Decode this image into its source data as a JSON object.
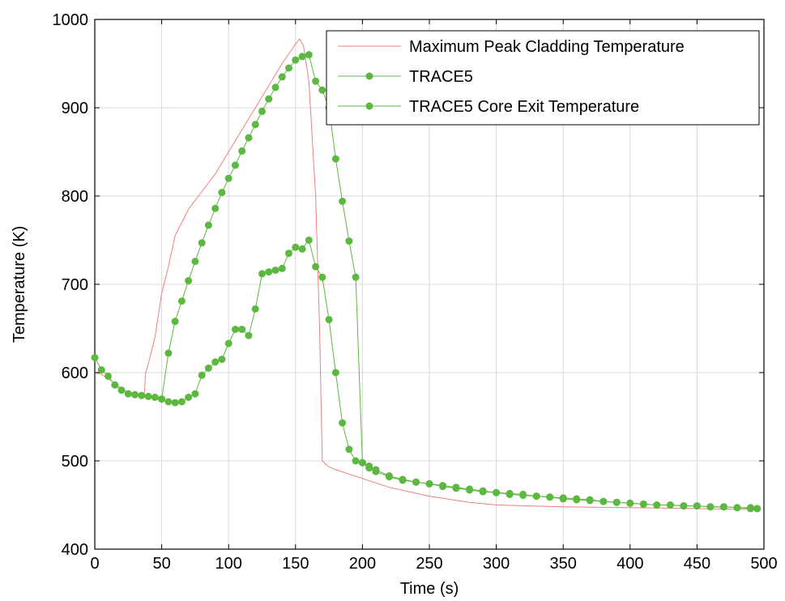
{
  "chart_data": {
    "type": "line",
    "title": "",
    "xlabel": "Time (s)",
    "ylabel": "Temperature (K)",
    "xlim": [
      0,
      500
    ],
    "ylim": [
      400,
      1000
    ],
    "xticks": [
      0,
      50,
      100,
      150,
      200,
      250,
      300,
      350,
      400,
      450,
      500
    ],
    "yticks": [
      400,
      500,
      600,
      700,
      800,
      900,
      1000
    ],
    "grid": true,
    "legend_position": "top-right",
    "series": [
      {
        "name": "Maximum Peak Cladding Temperature",
        "color": "#f08080",
        "marker": "none",
        "x": [
          0,
          5,
          10,
          15,
          20,
          25,
          30,
          35,
          37,
          38,
          40,
          45,
          50,
          55,
          60,
          65,
          70,
          80,
          90,
          100,
          110,
          120,
          130,
          140,
          150,
          153,
          156,
          160,
          165,
          168,
          170,
          175,
          180,
          190,
          200,
          220,
          250,
          280,
          300,
          350,
          400,
          450,
          495
        ],
        "y": [
          600,
          598,
          593,
          588,
          582,
          578,
          576,
          575,
          573,
          600,
          610,
          640,
          690,
          720,
          755,
          770,
          785,
          805,
          825,
          850,
          875,
          900,
          925,
          950,
          972,
          978,
          970,
          930,
          800,
          650,
          500,
          493,
          490,
          485,
          480,
          470,
          460,
          453,
          450,
          448,
          447,
          446,
          445
        ]
      },
      {
        "name": "TRACE5",
        "color": "#5cb840",
        "marker": "circle",
        "x": [
          50,
          55,
          60,
          65,
          70,
          75,
          80,
          85,
          90,
          95,
          100,
          105,
          110,
          115,
          120,
          125,
          130,
          135,
          140,
          145,
          150,
          155,
          160,
          165,
          170,
          175,
          180,
          185,
          190,
          195,
          200,
          205,
          210,
          220,
          230,
          240,
          250,
          260,
          270,
          280,
          290,
          300,
          310,
          320,
          330,
          340,
          350,
          360,
          370,
          380,
          390,
          400,
          410,
          420,
          430,
          440,
          450,
          460,
          470,
          480,
          490,
          495
        ],
        "y": [
          570,
          622,
          658,
          681,
          704,
          726,
          747,
          767,
          786,
          804,
          820,
          835,
          851,
          866,
          881,
          896,
          910,
          923,
          935,
          945,
          954,
          958,
          960,
          930,
          920,
          900,
          842,
          794,
          749,
          708,
          498,
          494,
          490,
          483,
          479,
          476,
          474,
          471,
          469,
          467,
          465,
          464,
          462,
          461,
          460,
          459,
          457,
          456,
          455,
          454,
          453,
          452,
          451,
          450,
          450,
          449,
          449,
          448,
          448,
          447,
          446,
          446
        ]
      },
      {
        "name": "TRACE5 Core Exit Temperature",
        "color": "#5cb840",
        "marker": "circle",
        "x": [
          0,
          5,
          10,
          15,
          20,
          25,
          30,
          35,
          40,
          45,
          50,
          55,
          60,
          65,
          70,
          75,
          80,
          85,
          90,
          95,
          100,
          105,
          110,
          115,
          120,
          125,
          130,
          135,
          140,
          145,
          150,
          155,
          160,
          165,
          170,
          175,
          180,
          185,
          190,
          195,
          200,
          205,
          210,
          220,
          230,
          240,
          250,
          260,
          270,
          280,
          290,
          300,
          310,
          320,
          330,
          340,
          350,
          360,
          370,
          380,
          390,
          400,
          410,
          420,
          430,
          440,
          450,
          460,
          470,
          480,
          490,
          495
        ],
        "y": [
          617,
          603,
          596,
          586,
          580,
          576,
          575,
          574,
          573,
          572,
          570,
          567,
          566,
          567,
          572,
          576,
          597,
          605,
          612,
          615,
          633,
          649,
          649,
          642,
          672,
          712,
          714,
          716,
          718,
          735,
          742,
          740,
          750,
          720,
          708,
          660,
          600,
          543,
          513,
          500,
          498,
          492,
          488,
          482,
          478,
          476,
          474,
          472,
          470,
          468,
          466,
          464,
          463,
          462,
          460,
          459,
          458,
          457,
          456,
          454,
          453,
          452,
          451,
          450,
          450,
          449,
          449,
          448,
          448,
          447,
          447,
          446
        ]
      }
    ]
  }
}
